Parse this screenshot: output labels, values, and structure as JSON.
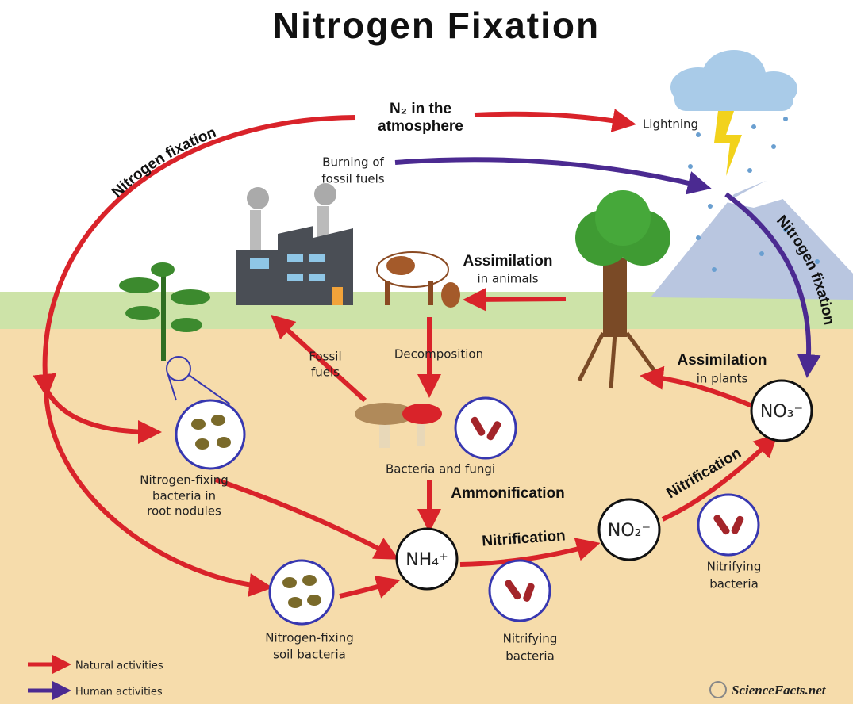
{
  "title": "Nitrogen Fixation",
  "labels": {
    "atmosphere": [
      "N₂ in the",
      "atmosphere"
    ],
    "lightning": "Lightning",
    "burning": [
      "Burning of",
      "fossil fuels"
    ],
    "fixation_left": "Nitrogen fixation",
    "fixation_right": "Nitrogen fixation",
    "assim_animals": [
      "Assimilation",
      "in animals"
    ],
    "decomposition": "Decomposition",
    "fossil_fuels": [
      "Fossil",
      "fuels"
    ],
    "assim_plants": [
      "Assimilation",
      "in plants"
    ],
    "bacteria_fungi": "Bacteria and fungi",
    "ammonification": "Ammonification",
    "nitrification_1": "Nitrification",
    "nitrification_2": "Nitrification",
    "root_nodules": [
      "Nitrogen-fixing",
      "bacteria in",
      "root nodules"
    ],
    "soil_bacteria": [
      "Nitrogen-fixing",
      "soil bacteria"
    ],
    "nitrifying_1": [
      "Nitrifying",
      "bacteria"
    ],
    "nitrifying_2": [
      "Nitrifying",
      "bacteria"
    ]
  },
  "nodes": {
    "nh4": "NH₄⁺",
    "no2": "NO₂⁻",
    "no3": "NO₃⁻"
  },
  "legend": [
    "Natural activities",
    "Human activities"
  ],
  "logo": "ScienceFacts.net"
}
